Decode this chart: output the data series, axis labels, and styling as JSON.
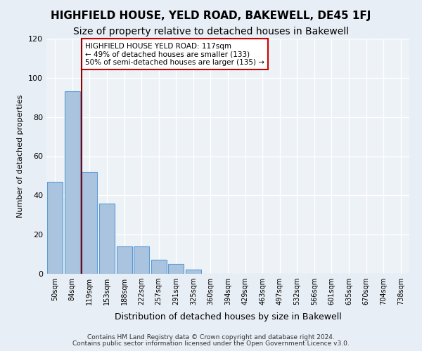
{
  "title": "HIGHFIELD HOUSE, YELD ROAD, BAKEWELL, DE45 1FJ",
  "subtitle": "Size of property relative to detached houses in Bakewell",
  "xlabel": "Distribution of detached houses by size in Bakewell",
  "ylabel": "Number of detached properties",
  "footer_line1": "Contains HM Land Registry data © Crown copyright and database right 2024.",
  "footer_line2": "Contains public sector information licensed under the Open Government Licence v3.0.",
  "bins": [
    "50sqm",
    "84sqm",
    "119sqm",
    "153sqm",
    "188sqm",
    "222sqm",
    "257sqm",
    "291sqm",
    "325sqm",
    "360sqm",
    "394sqm",
    "429sqm",
    "463sqm",
    "497sqm",
    "532sqm",
    "566sqm",
    "601sqm",
    "635sqm",
    "670sqm",
    "704sqm",
    "738sqm"
  ],
  "bar_values": [
    47,
    93,
    52,
    36,
    14,
    14,
    7,
    5,
    2,
    0,
    0,
    0,
    0,
    0,
    0,
    0,
    0,
    0,
    0,
    0,
    0
  ],
  "bar_color": "#aac4e0",
  "bar_edge_color": "#5b9bd5",
  "annotation_text_line1": "HIGHFIELD HOUSE YELD ROAD: 117sqm",
  "annotation_text_line2": "← 49% of detached houses are smaller (133)",
  "annotation_text_line3": "50% of semi-detached houses are larger (135) →",
  "marker_line_color": "#8b0000",
  "annotation_box_edge_color": "#cc0000",
  "ylim": [
    0,
    120
  ],
  "yticks": [
    0,
    20,
    40,
    60,
    80,
    100,
    120
  ],
  "bg_color": "#e8eef5",
  "plot_bg_color": "#edf2f7",
  "grid_color": "#ffffff",
  "title_fontsize": 11,
  "subtitle_fontsize": 10
}
